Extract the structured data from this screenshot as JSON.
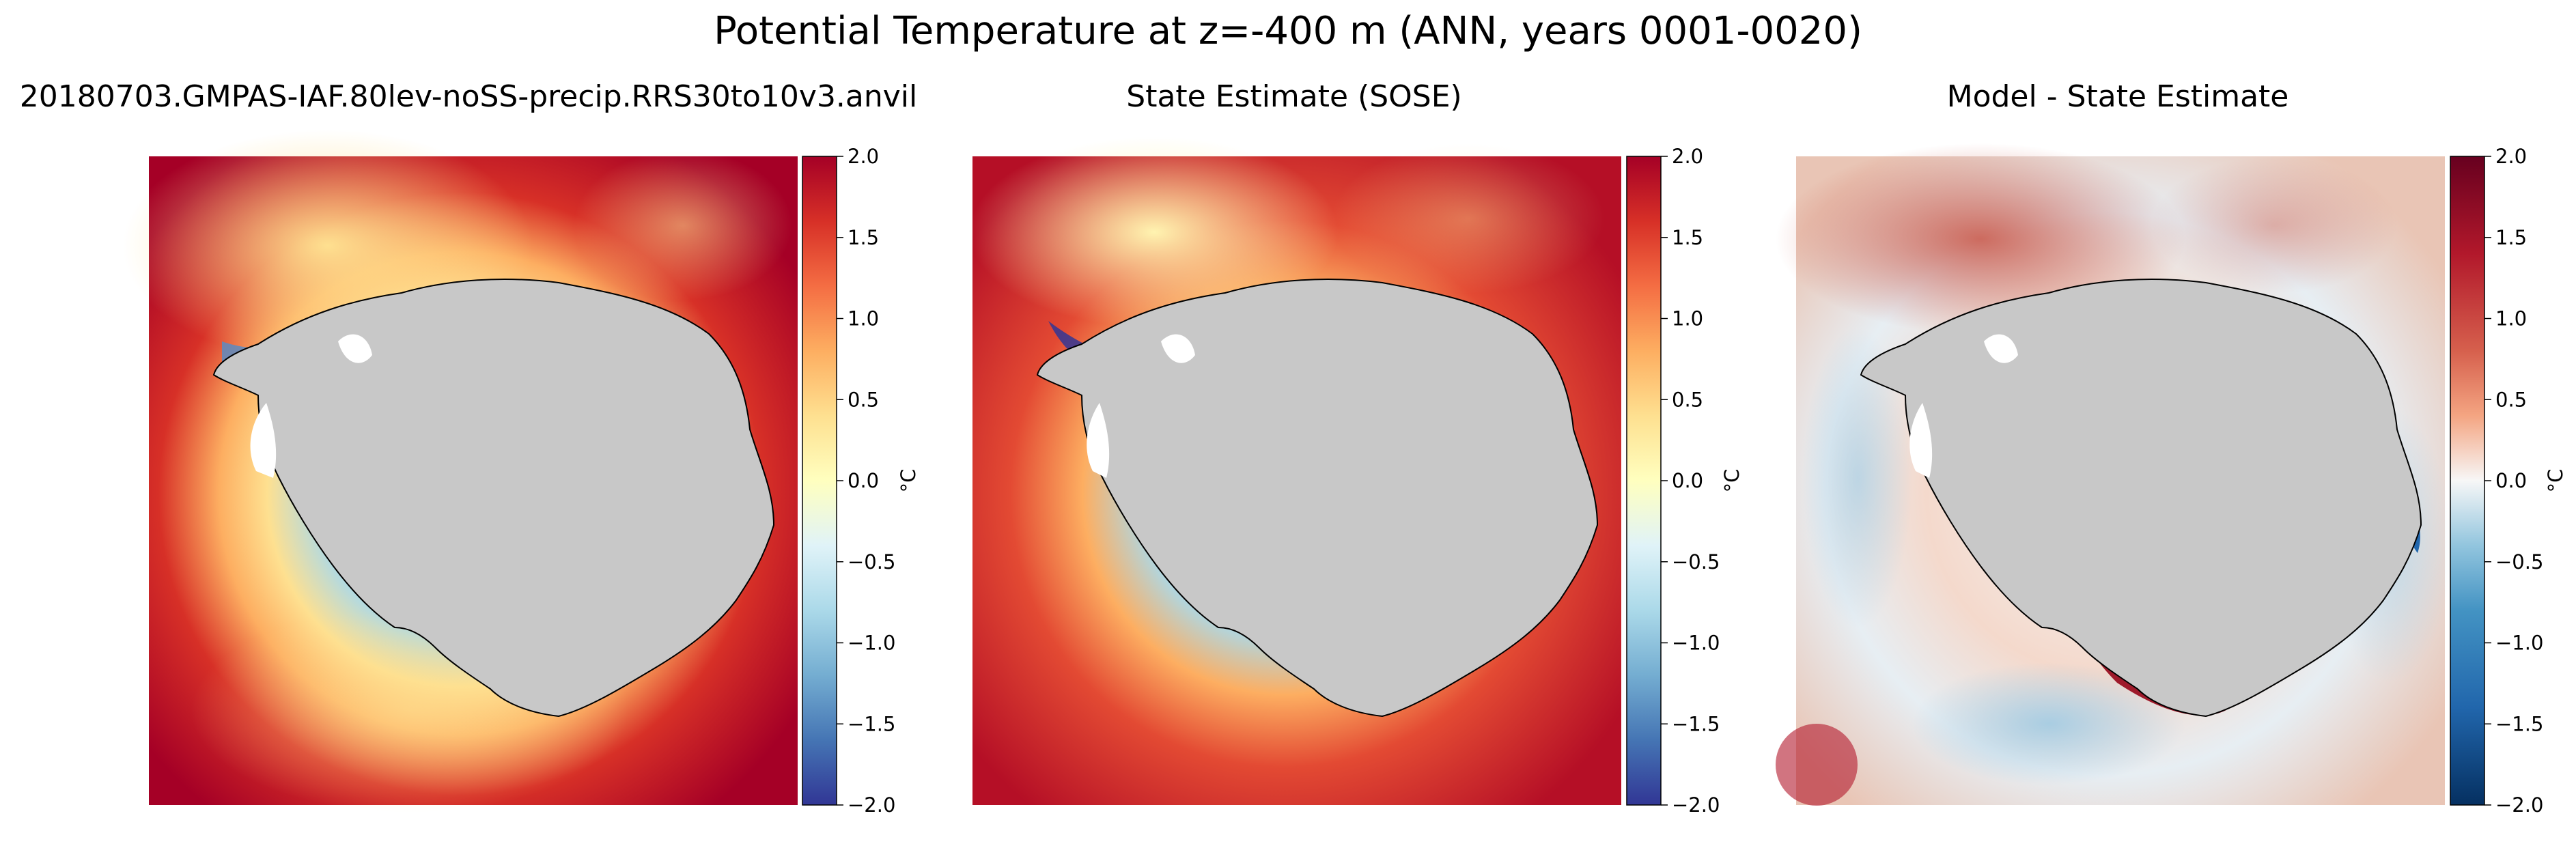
{
  "figure": {
    "suptitle": "Potential Temperature at z=-400 m (ANN, years 0001-0020)"
  },
  "panels": [
    {
      "title": "20180703.GMPAS-IAF.80lev-noSS-precip.RRS30to10v3.anvil",
      "colormap": "RdYlBu_r",
      "colorbar": {
        "ticks": [
          "2.0",
          "1.5",
          "1.0",
          "0.5",
          "0.0",
          "−0.5",
          "−1.0",
          "−1.5",
          "−2.0"
        ],
        "unit": "°C",
        "min": -2.0,
        "max": 2.0
      }
    },
    {
      "title": "State Estimate (SOSE)",
      "colormap": "RdYlBu_r",
      "colorbar": {
        "ticks": [
          "2.0",
          "1.5",
          "1.0",
          "0.5",
          "0.0",
          "−0.5",
          "−1.0",
          "−1.5",
          "−2.0"
        ],
        "unit": "°C",
        "min": -2.0,
        "max": 2.0
      }
    },
    {
      "title": "Model - State Estimate",
      "colormap": "RdBu_r",
      "colorbar": {
        "ticks": [
          "2.0",
          "1.5",
          "1.0",
          "0.5",
          "0.0",
          "−0.5",
          "−1.0",
          "−1.5",
          "−2.0"
        ],
        "unit": "°C",
        "min": -2.0,
        "max": 2.0
      }
    }
  ],
  "colors": {
    "land": "#c8c8c8",
    "coastline": "#000000",
    "no_data": "#ffffff"
  }
}
